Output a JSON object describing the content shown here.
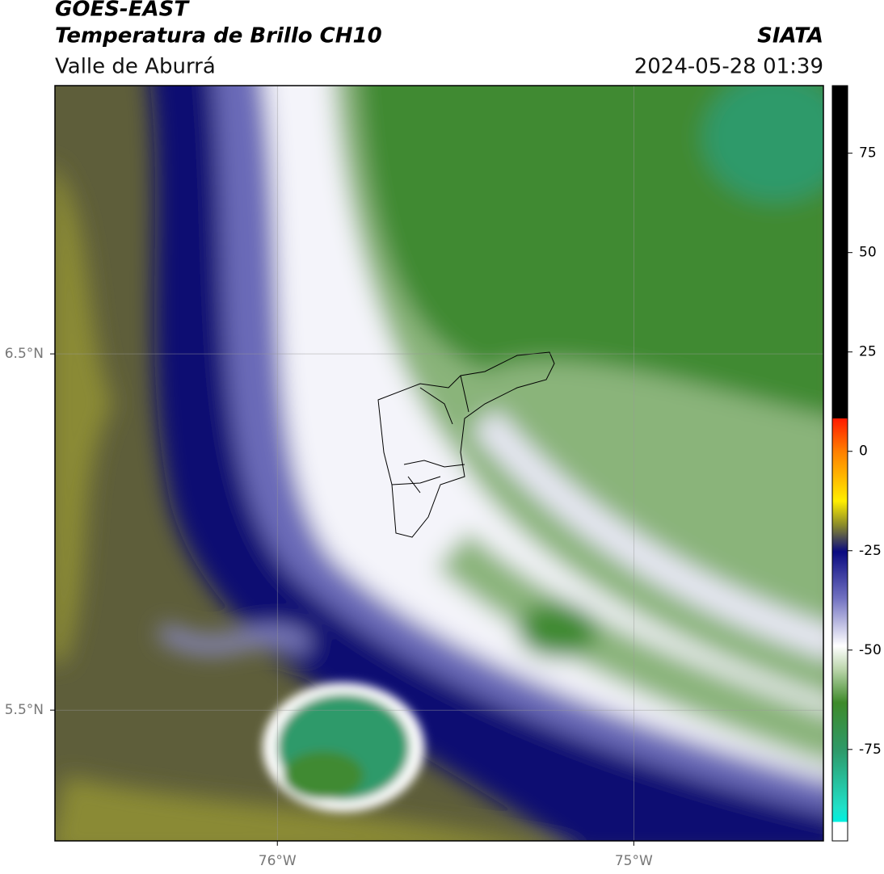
{
  "header": {
    "title": "GOES-EAST",
    "subtitle": "Temperatura de Brillo CH10",
    "region": "Valle de Aburrá",
    "source": "SIATA",
    "timestamp": "2024-05-28 01:39"
  },
  "map": {
    "xlim": [
      -76.624,
      -74.468
    ],
    "ylim": [
      5.133,
      7.253
    ],
    "xticks": [
      {
        "value": -76,
        "label": "76°W"
      },
      {
        "value": -75,
        "label": "75°W"
      }
    ],
    "yticks": [
      {
        "value": 6.5,
        "label": "6.5°N"
      },
      {
        "value": 5.5,
        "label": "5.5°N"
      }
    ]
  },
  "colorbar": {
    "lim": [
      -98,
      92
    ],
    "ticks": [
      75,
      50,
      25,
      0,
      -25,
      -50,
      -75
    ]
  }
}
